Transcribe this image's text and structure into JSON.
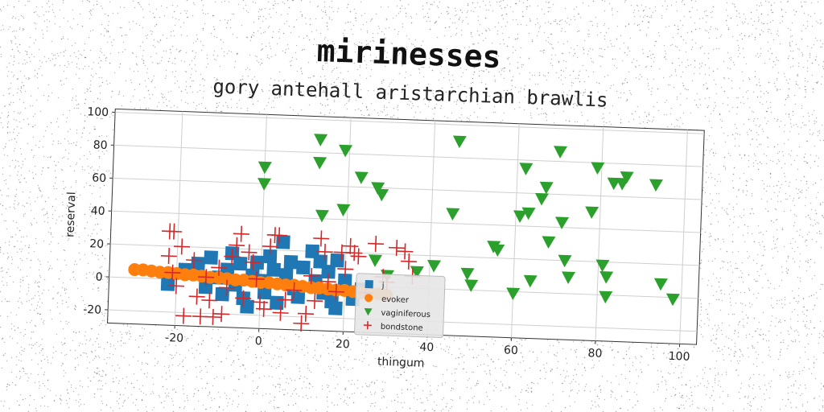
{
  "chart_data": {
    "type": "scatter",
    "suptitle": "mirinesses",
    "title": "gory antehall aristarchian brawlis",
    "xlabel": "thingum",
    "ylabel": "reserval",
    "xlim": [
      -36,
      104
    ],
    "ylim": [
      -28,
      102
    ],
    "xticks": [
      -20,
      0,
      20,
      40,
      60,
      80,
      100
    ],
    "yticks": [
      -20,
      0,
      20,
      40,
      60,
      80,
      100
    ],
    "grid": true,
    "legend_position": "lower-center",
    "series": [
      {
        "name": "j",
        "marker": "square",
        "color": "#1f77b4",
        "points": [
          [
            -22,
            -3
          ],
          [
            -18,
            6
          ],
          [
            -15,
            10
          ],
          [
            -13,
            -4
          ],
          [
            -12,
            14
          ],
          [
            -10,
            2
          ],
          [
            -9,
            -8
          ],
          [
            -8,
            7
          ],
          [
            -7,
            17
          ],
          [
            -6,
            -2
          ],
          [
            -5,
            11
          ],
          [
            -4,
            -10
          ],
          [
            -3,
            -15
          ],
          [
            -2,
            4
          ],
          [
            -1,
            12
          ],
          [
            0,
            1
          ],
          [
            1,
            -6
          ],
          [
            2,
            16
          ],
          [
            3,
            8
          ],
          [
            4,
            -12
          ],
          [
            5,
            25
          ],
          [
            6,
            5
          ],
          [
            7,
            13
          ],
          [
            8,
            -3
          ],
          [
            9,
            -8
          ],
          [
            10,
            10
          ],
          [
            12,
            20
          ],
          [
            13,
            2
          ],
          [
            14,
            14
          ],
          [
            15,
            -5
          ],
          [
            16,
            8
          ],
          [
            17,
            -10
          ],
          [
            18,
            15
          ],
          [
            20,
            3
          ],
          [
            22,
            -8
          ],
          [
            24,
            -2
          ],
          [
            18,
            -14
          ]
        ]
      },
      {
        "name": "evoker",
        "marker": "circle",
        "color": "#ff7f0e",
        "points": [
          [
            -30,
            5
          ],
          [
            -28,
            5
          ],
          [
            -26,
            4.5
          ],
          [
            -24,
            4
          ],
          [
            -22,
            4
          ],
          [
            -20,
            3.5
          ],
          [
            -18,
            3
          ],
          [
            -16,
            3
          ],
          [
            -14,
            2.5
          ],
          [
            -12,
            2
          ],
          [
            -10,
            2
          ],
          [
            -8,
            1.5
          ],
          [
            -6,
            1
          ],
          [
            -4,
            1
          ],
          [
            -2,
            0.5
          ],
          [
            0,
            0
          ],
          [
            2,
            0
          ],
          [
            4,
            -0.5
          ],
          [
            6,
            -1
          ],
          [
            8,
            -1
          ],
          [
            10,
            -1.5
          ],
          [
            12,
            -2
          ],
          [
            14,
            -2
          ],
          [
            16,
            -2.5
          ],
          [
            18,
            -3
          ],
          [
            20,
            -3
          ],
          [
            22,
            -3.5
          ],
          [
            24,
            -4
          ],
          [
            26,
            -4
          ],
          [
            28,
            -4.5
          ],
          [
            30,
            -5
          ]
        ]
      },
      {
        "name": "vaginiferous",
        "marker": "triangle-down",
        "color": "#2ca02c",
        "points": [
          [
            0,
            70
          ],
          [
            0,
            60
          ],
          [
            13,
            88
          ],
          [
            13,
            74
          ],
          [
            14,
            42
          ],
          [
            19,
            82
          ],
          [
            19,
            46
          ],
          [
            23,
            66
          ],
          [
            27,
            60
          ],
          [
            28,
            56
          ],
          [
            27,
            16
          ],
          [
            30,
            7
          ],
          [
            37,
            10
          ],
          [
            41,
            14
          ],
          [
            46,
            90
          ],
          [
            45,
            46
          ],
          [
            49,
            10
          ],
          [
            50,
            3
          ],
          [
            55,
            27
          ],
          [
            56,
            25
          ],
          [
            60,
            -1
          ],
          [
            61,
            46
          ],
          [
            62,
            75
          ],
          [
            63,
            48
          ],
          [
            64,
            7
          ],
          [
            66,
            57
          ],
          [
            67,
            64
          ],
          [
            68,
            31
          ],
          [
            70,
            86
          ],
          [
            71,
            43
          ],
          [
            72,
            20
          ],
          [
            73,
            10
          ],
          [
            78,
            50
          ],
          [
            79,
            77
          ],
          [
            81,
            18
          ],
          [
            82,
            11
          ],
          [
            82,
            -1
          ],
          [
            83,
            68
          ],
          [
            85,
            68
          ],
          [
            86,
            72
          ],
          [
            93,
            68
          ],
          [
            95,
            8
          ],
          [
            98,
            -1
          ]
        ]
      },
      {
        "name": "bondstone",
        "marker": "plus",
        "color": "#d62728",
        "points": [
          [
            -22,
            29
          ],
          [
            -21,
            29
          ],
          [
            -22,
            14
          ],
          [
            -21,
            4
          ],
          [
            -20,
            -4
          ],
          [
            -19,
            20
          ],
          [
            -18,
            -22
          ],
          [
            -16,
            12
          ],
          [
            -15,
            -10
          ],
          [
            -14,
            -22
          ],
          [
            -13,
            2
          ],
          [
            -12,
            -12
          ],
          [
            -11,
            -22
          ],
          [
            -10,
            8
          ],
          [
            -9,
            -20
          ],
          [
            -8,
            -4
          ],
          [
            -7,
            15
          ],
          [
            -6,
            22
          ],
          [
            -5,
            29
          ],
          [
            -4,
            -10
          ],
          [
            -3,
            18
          ],
          [
            -2,
            12
          ],
          [
            -1,
            2
          ],
          [
            0,
            -12
          ],
          [
            1,
            -16
          ],
          [
            2,
            22
          ],
          [
            3,
            29
          ],
          [
            4,
            29
          ],
          [
            5,
            -18
          ],
          [
            6,
            -10
          ],
          [
            8,
            -4
          ],
          [
            10,
            -24
          ],
          [
            11,
            -18
          ],
          [
            12,
            5
          ],
          [
            13,
            -10
          ],
          [
            14,
            28
          ],
          [
            15,
            20
          ],
          [
            16,
            2
          ],
          [
            18,
            -4
          ],
          [
            19,
            20
          ],
          [
            20,
            10
          ],
          [
            21,
            24
          ],
          [
            22,
            20
          ],
          [
            23,
            18
          ],
          [
            25,
            -4
          ],
          [
            27,
            26
          ],
          [
            29,
            6
          ],
          [
            30,
            3
          ],
          [
            32,
            24
          ],
          [
            34,
            22
          ],
          [
            35,
            16
          ],
          [
            36,
            7
          ]
        ]
      }
    ]
  }
}
